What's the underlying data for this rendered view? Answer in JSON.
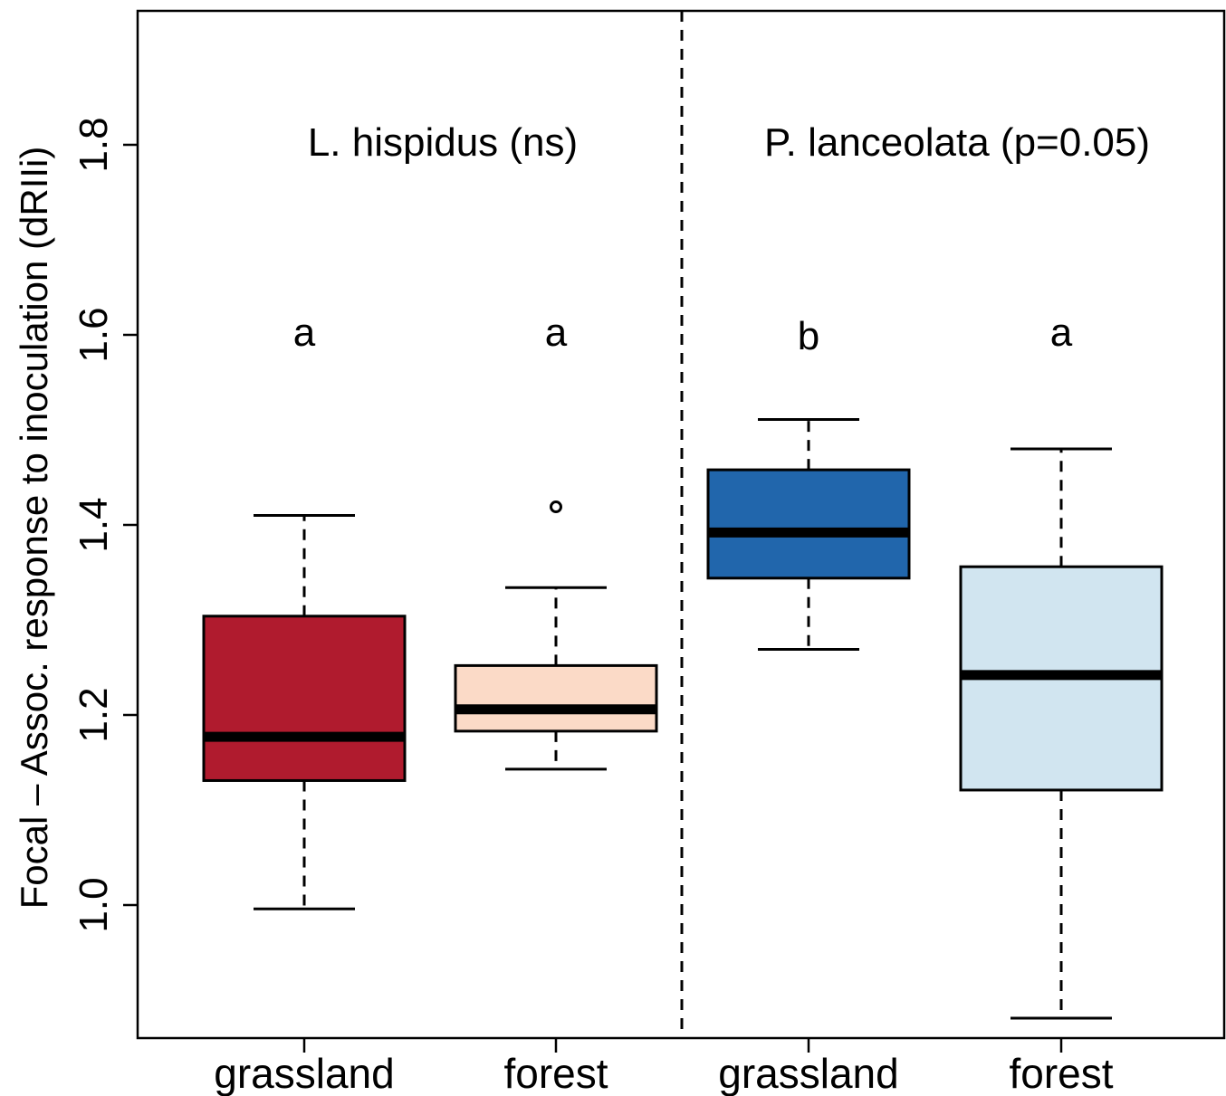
{
  "chart_data": {
    "type": "boxplot",
    "ylabel": "Focal – Assoc. response to inoculation (dRIIi)",
    "ylim": [
      0.86,
      1.94
    ],
    "yticks": [
      "1.0",
      "1.2",
      "1.4",
      "1.6",
      "1.8"
    ],
    "categories": [
      "grassland",
      "forest",
      "grassland",
      "forest"
    ],
    "groups": [
      {
        "title": "L. hispidus (ns)",
        "boxes": [
          0,
          1
        ]
      },
      {
        "title": "P. lanceolata (p=0.05)",
        "boxes": [
          2,
          3
        ]
      }
    ],
    "boxes": [
      {
        "category": "grassland",
        "species": "L. hispidus",
        "letter": "a",
        "color": "#B01B2E",
        "whisker_low": 0.996,
        "q1": 1.131,
        "median": 1.177,
        "q3": 1.304,
        "whisker_high": 1.41,
        "outliers": []
      },
      {
        "category": "forest",
        "species": "L. hispidus",
        "letter": "a",
        "color": "#FBDAC7",
        "whisker_low": 1.143,
        "q1": 1.183,
        "median": 1.206,
        "q3": 1.252,
        "whisker_high": 1.334,
        "outliers": [
          1.419
        ]
      },
      {
        "category": "grassland",
        "species": "P. lanceolata",
        "letter": "b",
        "color": "#2166AC",
        "whisker_low": 1.269,
        "q1": 1.344,
        "median": 1.392,
        "q3": 1.458,
        "whisker_high": 1.511,
        "outliers": []
      },
      {
        "category": "forest",
        "species": "P. lanceolata",
        "letter": "a",
        "color": "#D1E5F0",
        "whisker_low": 0.881,
        "q1": 1.121,
        "median": 1.242,
        "q3": 1.356,
        "whisker_high": 1.48,
        "outliers": []
      }
    ],
    "divider": "dashed vertical line between groups",
    "grid": false
  }
}
